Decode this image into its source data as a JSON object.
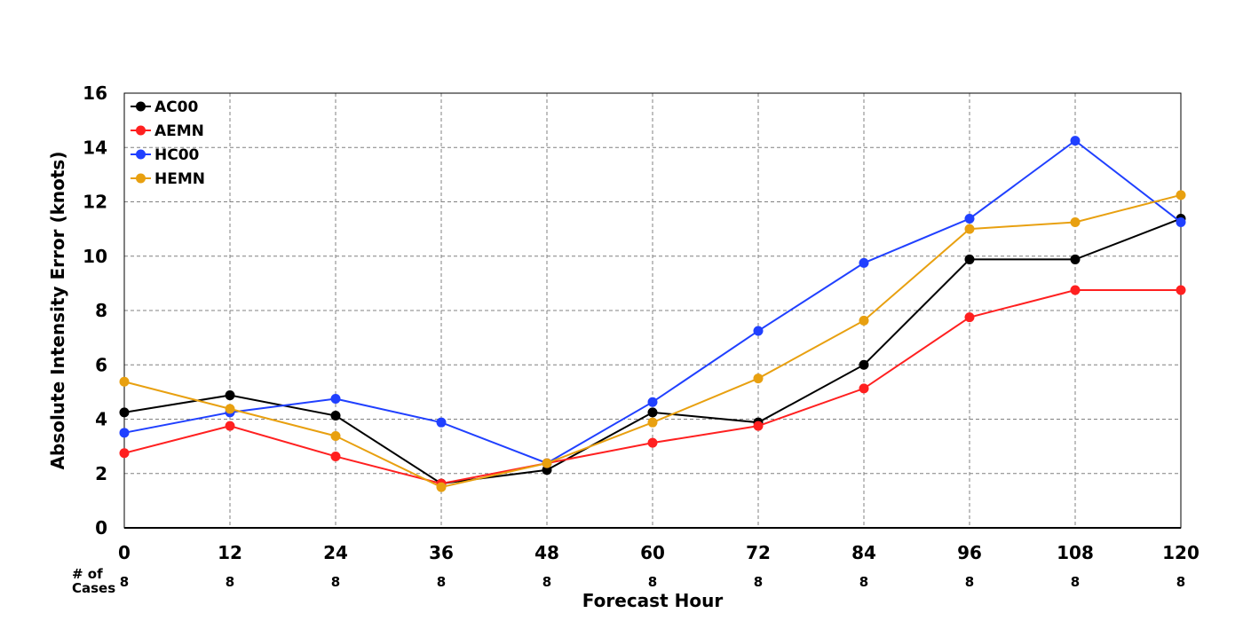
{
  "chart_data": {
    "type": "line",
    "title": "",
    "xlabel": "Forecast Hour",
    "ylabel": "Absolute Intensity Error (knots)",
    "x": [
      0,
      12,
      24,
      36,
      48,
      60,
      72,
      84,
      96,
      108,
      120
    ],
    "xticks": [
      "0",
      "12",
      "24",
      "36",
      "48",
      "60",
      "72",
      "84",
      "96",
      "108",
      "120"
    ],
    "yticks": [
      "0",
      "2",
      "4",
      "6",
      "8",
      "10",
      "12",
      "14",
      "16"
    ],
    "xlim": [
      0,
      120
    ],
    "ylim": [
      0,
      16
    ],
    "grid": true,
    "legend_position": "top-left",
    "cases_label_line1": "# of",
    "cases_label_line2": "Cases",
    "cases": [
      "8",
      "8",
      "8",
      "8",
      "8",
      "8",
      "8",
      "8",
      "8",
      "8",
      "8"
    ],
    "series": [
      {
        "name": "AC00",
        "color": "#000000",
        "values": [
          4.25,
          4.88,
          4.13,
          1.63,
          2.13,
          4.25,
          3.88,
          6.0,
          9.88,
          9.88,
          11.38
        ]
      },
      {
        "name": "AEMN",
        "color": "#ff2020",
        "values": [
          2.75,
          3.75,
          2.63,
          1.63,
          2.38,
          3.13,
          3.75,
          5.13,
          7.75,
          8.75,
          8.75
        ]
      },
      {
        "name": "HC00",
        "color": "#2040ff",
        "values": [
          3.5,
          4.25,
          4.75,
          3.88,
          2.38,
          4.63,
          7.25,
          9.75,
          11.38,
          14.25,
          11.25
        ]
      },
      {
        "name": "HEMN",
        "color": "#e8a010",
        "values": [
          5.38,
          4.38,
          3.38,
          1.5,
          2.38,
          3.88,
          5.5,
          7.63,
          11.0,
          11.25,
          12.25
        ]
      }
    ]
  }
}
